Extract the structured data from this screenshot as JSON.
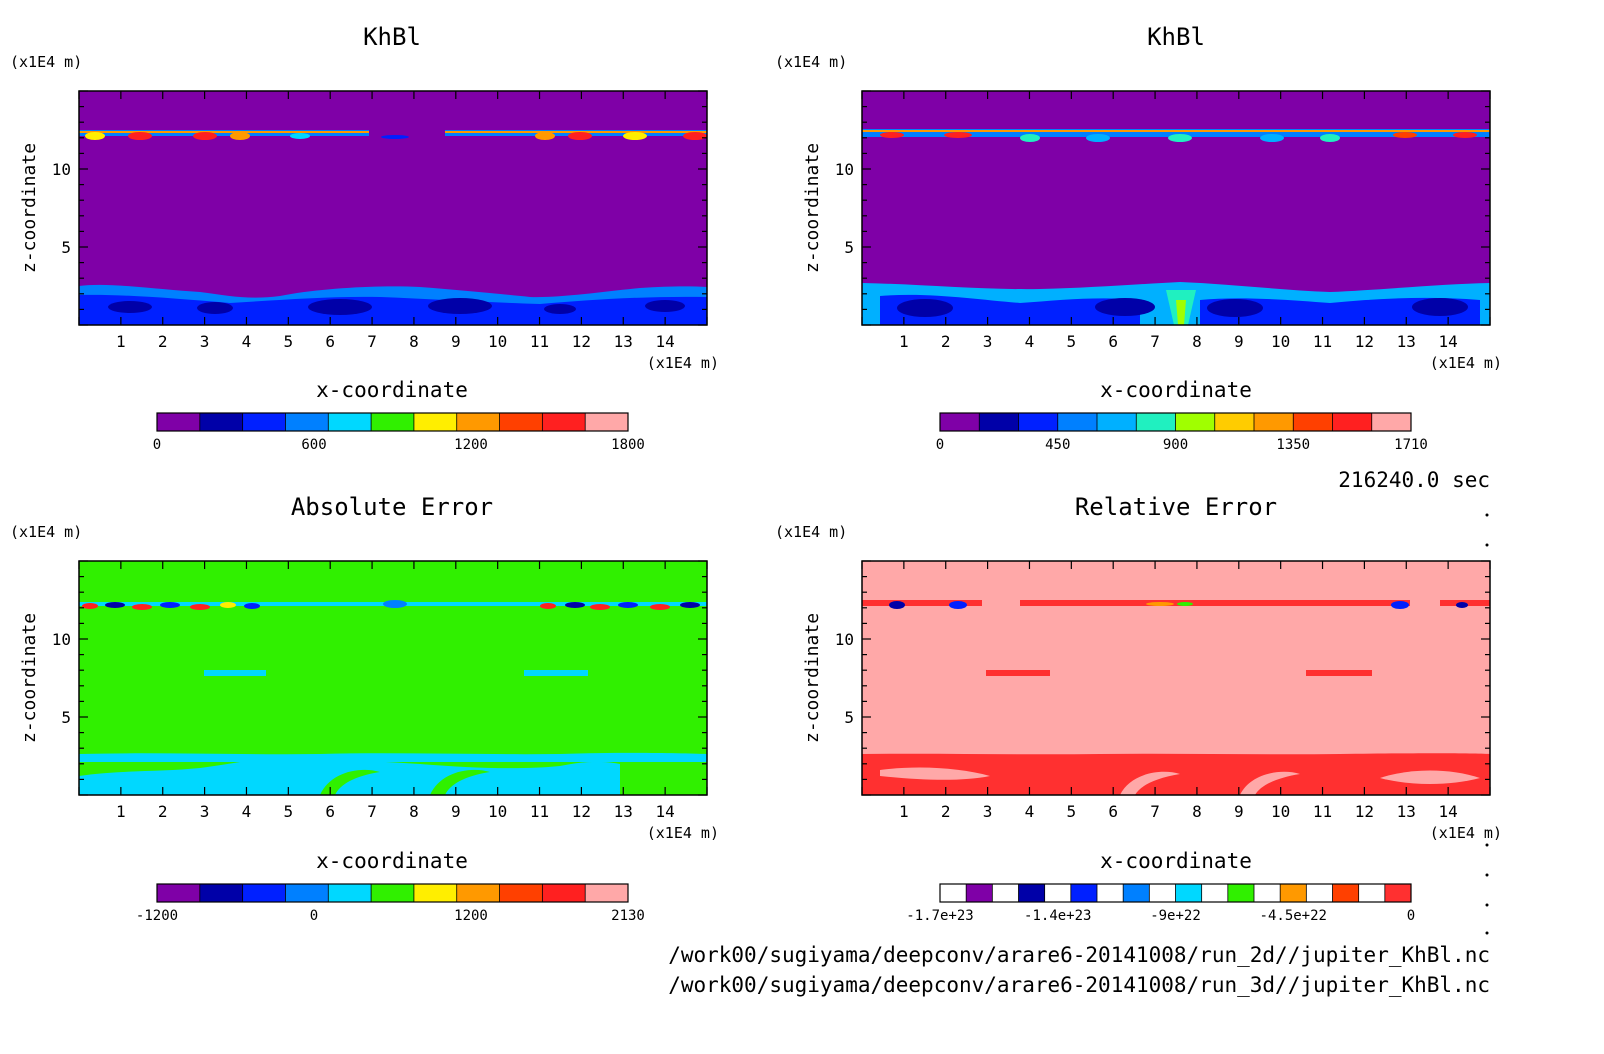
{
  "colors": {
    "purple": "#7f00a7",
    "navy": "#0000a8",
    "blue": "#0020ff",
    "mid_blue": "#0080ff",
    "cyan": "#00d8ff",
    "light_cyan": "#20f0ff",
    "green": "#30f000",
    "lime": "#a0ff00",
    "yellow": "#ffee00",
    "orange": "#ff9900",
    "red_orange": "#ff4000",
    "red": "#ff2020",
    "red_err": "#ff3030",
    "pink": "#ffa8a8"
  },
  "time_label": "216240.0 sec",
  "file_paths": [
    "/work00/sugiyama/deepconv/arare6-20141008/run_2d//jupiter_KhBl.nc",
    "/work00/sugiyama/deepconv/arare6-20141008/run_3d//jupiter_KhBl.nc"
  ],
  "chart_data": [
    {
      "type": "heatmap",
      "title": "KhBl",
      "xlabel": "x-coordinate",
      "ylabel": "z-coordinate",
      "x_unit": "(x1E4 m)",
      "y_unit": "(x1E4 m)",
      "xlim": [
        0,
        15
      ],
      "ylim": [
        0,
        15
      ],
      "xticks": [
        "1",
        "2",
        "3",
        "4",
        "5",
        "6",
        "7",
        "8",
        "9",
        "10",
        "11",
        "12",
        "13",
        "14"
      ],
      "yticks": [
        "5",
        "10"
      ],
      "colorbar": {
        "levels": [
          "0",
          "600",
          "1200",
          "1800"
        ],
        "colors": [
          "#7f00a7",
          "#0000a8",
          "#0020ff",
          "#0080ff",
          "#00d8ff",
          "#30f000",
          "#ffee00",
          "#ff9900",
          "#ff4000",
          "#ff2020",
          "#ffa8a8"
        ]
      }
    },
    {
      "type": "heatmap",
      "title": "KhBl",
      "xlabel": "x-coordinate",
      "ylabel": "z-coordinate",
      "x_unit": "(x1E4 m)",
      "y_unit": "(x1E4 m)",
      "xlim": [
        0,
        15
      ],
      "ylim": [
        0,
        15
      ],
      "xticks": [
        "1",
        "2",
        "3",
        "4",
        "5",
        "6",
        "7",
        "8",
        "9",
        "10",
        "11",
        "12",
        "13",
        "14"
      ],
      "yticks": [
        "5",
        "10"
      ],
      "colorbar": {
        "levels": [
          "0",
          "450",
          "900",
          "1350",
          "1710"
        ],
        "colors": [
          "#7f00a7",
          "#0000a8",
          "#0020ff",
          "#0080ff",
          "#00b0ff",
          "#20f0c0",
          "#a0ff00",
          "#ffcc00",
          "#ff9900",
          "#ff4000",
          "#ff2020",
          "#ffa8a8"
        ]
      }
    },
    {
      "type": "heatmap",
      "title": "Absolute Error",
      "xlabel": "x-coordinate",
      "ylabel": "z-coordinate",
      "x_unit": "(x1E4 m)",
      "y_unit": "(x1E4 m)",
      "xlim": [
        0,
        15
      ],
      "ylim": [
        0,
        15
      ],
      "xticks": [
        "1",
        "2",
        "3",
        "4",
        "5",
        "6",
        "7",
        "8",
        "9",
        "10",
        "11",
        "12",
        "13",
        "14"
      ],
      "yticks": [
        "5",
        "10"
      ],
      "colorbar": {
        "levels": [
          "-1200",
          "0",
          "1200",
          "2130"
        ],
        "colors": [
          "#7f00a7",
          "#0000a8",
          "#0020ff",
          "#0080ff",
          "#00d8ff",
          "#30f000",
          "#ffee00",
          "#ff9900",
          "#ff4000",
          "#ff2020",
          "#ffa8a8"
        ]
      }
    },
    {
      "type": "heatmap",
      "title": "Relative Error",
      "xlabel": "x-coordinate",
      "ylabel": "z-coordinate",
      "x_unit": "(x1E4 m)",
      "y_unit": "(x1E4 m)",
      "xlim": [
        0,
        15
      ],
      "ylim": [
        0,
        15
      ],
      "xticks": [
        "1",
        "2",
        "3",
        "4",
        "5",
        "6",
        "7",
        "8",
        "9",
        "10",
        "11",
        "12",
        "13",
        "14"
      ],
      "yticks": [
        "5",
        "10"
      ],
      "colorbar": {
        "levels": [
          "-1.7e+23",
          "-1.4e+23",
          "-9e+22",
          "-4.5e+22",
          "0"
        ],
        "colors": [
          "#ffffff",
          "#7f00a7",
          "#ffffff",
          "#0000a8",
          "#ffffff",
          "#0020ff",
          "#ffffff",
          "#0080ff",
          "#ffffff",
          "#00d8ff",
          "#ffffff",
          "#30f000",
          "#ffffff",
          "#ff9900",
          "#ffffff",
          "#ff4000",
          "#ffffff",
          "#ff3030"
        ]
      }
    }
  ]
}
